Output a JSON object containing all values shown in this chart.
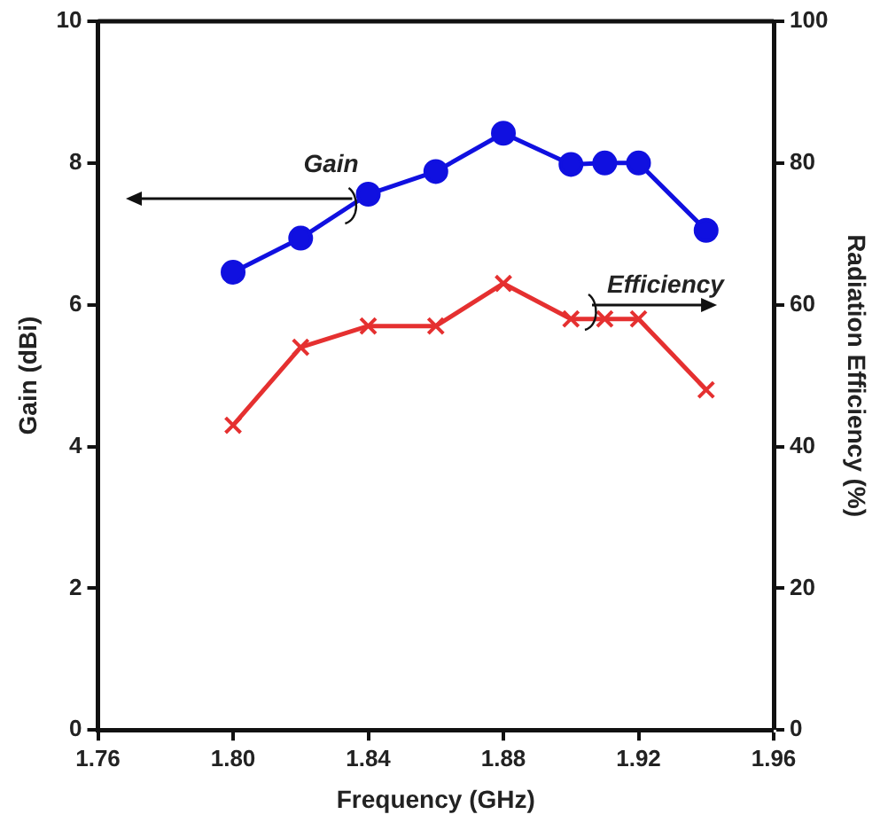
{
  "chart_data": {
    "type": "line",
    "xlabel": "Frequency (GHz)",
    "ylabel": "Gain (dBi)",
    "y2label": "Radiation Efficiency (%)",
    "x": [
      1.8,
      1.82,
      1.84,
      1.86,
      1.88,
      1.9,
      1.91,
      1.92,
      1.94
    ],
    "series": [
      {
        "name": "Gain",
        "color": "#1010e0",
        "marker": "circle",
        "values": [
          6.46,
          6.94,
          7.56,
          7.88,
          8.42,
          7.98,
          8.0,
          8.0,
          7.05
        ]
      },
      {
        "name": "Efficiency",
        "color": "#e53030",
        "marker": "cross",
        "axis": "y2",
        "values": [
          43,
          54,
          57,
          57,
          63,
          58,
          58,
          58,
          48
        ]
      }
    ],
    "xlim": [
      1.76,
      1.96
    ],
    "xticks": [
      {
        "value": 1.76,
        "label": "1.76"
      },
      {
        "value": 1.8,
        "label": "1.80"
      },
      {
        "value": 1.84,
        "label": "1.84"
      },
      {
        "value": 1.88,
        "label": "1.88"
      },
      {
        "value": 1.92,
        "label": "1.92"
      },
      {
        "value": 1.96,
        "label": "1.96"
      }
    ],
    "ylim": [
      0,
      10
    ],
    "yticks": [
      0,
      2,
      4,
      6,
      8,
      10
    ],
    "y2lim": [
      0,
      100
    ],
    "y2ticks": [
      0,
      20,
      40,
      60,
      80,
      100
    ],
    "grid": false,
    "legend": false,
    "line_style": "solid"
  }
}
